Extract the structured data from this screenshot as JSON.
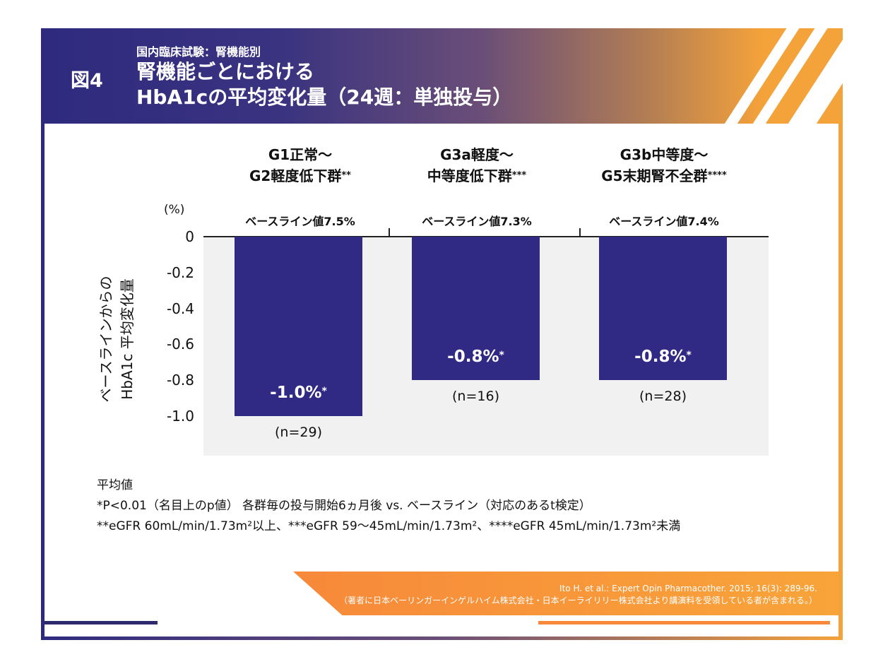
{
  "header": {
    "figure_no": "図4",
    "subtitle": "国内臨床試験：腎機能別",
    "title_line1": "腎機能ごとにおける",
    "title_line2": "HbA1cの平均変化量（24週：単独投与）"
  },
  "chart_data": {
    "type": "bar",
    "categories": [
      "G1正常～G2軽度低下群",
      "G3a軽度～中等度低下群",
      "G3b中等度～G5末期腎不全群"
    ],
    "category_lines": [
      [
        "G1正常～",
        "G2軽度低下群",
        "**"
      ],
      [
        "G3a軽度～",
        "中等度低下群",
        "***"
      ],
      [
        "G3b中等度～",
        "G5末期腎不全群",
        "****"
      ]
    ],
    "baselines": [
      "ベースライン値7.5%",
      "ベースライン値7.3%",
      "ベースライン値7.4%"
    ],
    "values": [
      -1.0,
      -0.8,
      -0.8
    ],
    "data_labels": [
      "-1.0%",
      "-0.8%",
      "-0.8%"
    ],
    "data_label_mark": "*",
    "n_labels": [
      "(n=29)",
      "(n=16)",
      "(n=28)"
    ],
    "ylabel": [
      "ベースラインからの",
      "HbA1c 平均変化量"
    ],
    "unit": "(%)",
    "yticks": [
      "0",
      "-0.2",
      "-0.4",
      "-0.6",
      "-0.8",
      "-1.0"
    ],
    "ytick_values": [
      0,
      -0.2,
      -0.4,
      -0.6,
      -0.8,
      -1.0
    ],
    "ylim": [
      -1.2,
      0
    ],
    "bar_color": "#302a85",
    "plot_bg": "#f1f1f1",
    "grid": false
  },
  "notes": {
    "line1": "平均値",
    "line2": "*P<0.01（名目上のp値） 各群毎の投与開始6ヵ月後 vs. ベースライン（対応のあるt検定）",
    "line3": "**eGFR 60mL/min/1.73m²以上、***eGFR 59～45mL/min/1.73m²、****eGFR 45mL/min/1.73m²未満"
  },
  "citation": {
    "line1": "Ito H. et al.: Expert Opin Pharmacother. 2015; 16(3): 289-96.",
    "line2": "（著者に日本ベーリンガーインゲルハイム株式会社・日本イーライリリー株式会社より講演料を受領している者が含まれる。）"
  },
  "colors": {
    "navy": "#2e2a7e",
    "orange": "#f4a23a"
  }
}
